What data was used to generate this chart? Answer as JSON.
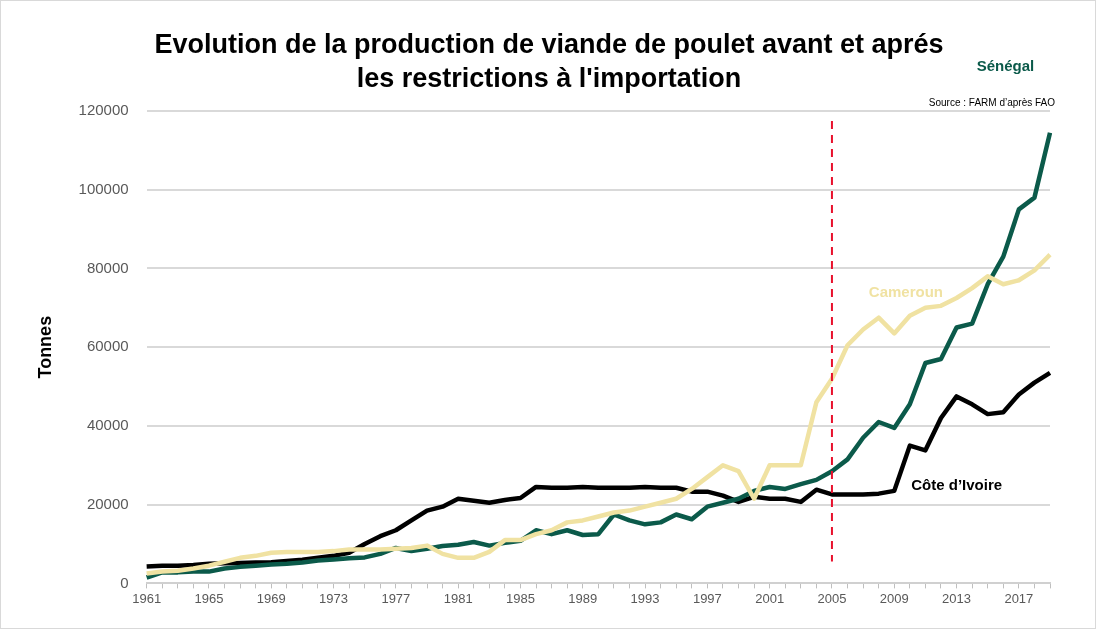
{
  "chart_data": {
    "type": "line",
    "title": "Evolution de la production de viande de poulet avant et aprés les restrictions à l'importation",
    "ylabel": "Tonnes",
    "annotations": [
      "Source : FARM d’après FAO"
    ],
    "categories": [
      "1961",
      null,
      null,
      null,
      "1965",
      null,
      null,
      null,
      "1969",
      null,
      null,
      null,
      "1973",
      null,
      null,
      null,
      "1977",
      null,
      null,
      null,
      "1981",
      null,
      null,
      null,
      "1985",
      null,
      null,
      null,
      "1989",
      null,
      null,
      null,
      "1993",
      null,
      null,
      null,
      "1997",
      null,
      null,
      null,
      "2001",
      null,
      null,
      null,
      "2005",
      null,
      null,
      null,
      "2009",
      null,
      null,
      null,
      "2013",
      null,
      null,
      null,
      "2017",
      null,
      null
    ],
    "series": [
      {
        "name": "Cameroun",
        "color": "#f0e2a2",
        "values": [
          2500,
          3000,
          3200,
          3800,
          4500,
          5500,
          6500,
          7000,
          7800,
          8000,
          8000,
          8000,
          8200,
          8600,
          8600,
          8600,
          8800,
          9000,
          9600,
          7500,
          6500,
          6500,
          8000,
          11000,
          11000,
          12500,
          13500,
          15500,
          16000,
          17000,
          18000,
          18500,
          19500,
          20500,
          21500,
          24000,
          27000,
          30000,
          28500,
          21500,
          30000,
          30000,
          30000,
          46000,
          52000,
          60500,
          64500,
          67500,
          63500,
          68000,
          70000,
          70500,
          72500,
          75000,
          78000,
          76000,
          77000,
          79500,
          83500
        ]
      },
      {
        "name": "Sénégal",
        "color": "#0b5a4a",
        "values": [
          1500,
          2800,
          2800,
          3000,
          3000,
          3800,
          4200,
          4500,
          4800,
          5000,
          5300,
          5800,
          6100,
          6400,
          6600,
          7500,
          9000,
          8200,
          8800,
          9500,
          9800,
          10500,
          9600,
          10300,
          10800,
          13500,
          12500,
          13500,
          12300,
          12500,
          17500,
          16000,
          15000,
          15500,
          17500,
          16300,
          19500,
          20500,
          21500,
          23500,
          24500,
          24000,
          25200,
          26300,
          28500,
          31500,
          37000,
          41000,
          39500,
          45500,
          56000,
          57000,
          65000,
          66000,
          76000,
          83000,
          95000,
          98000,
          114500
        ]
      },
      {
        "name": "Côte d’Ivoire",
        "color": "#000000",
        "values": [
          4300,
          4500,
          4500,
          4700,
          5000,
          5100,
          5200,
          5300,
          5400,
          5700,
          6000,
          6500,
          7000,
          7800,
          10000,
          12000,
          13500,
          16000,
          18500,
          19500,
          21500,
          21000,
          20500,
          21200,
          21700,
          24500,
          24300,
          24300,
          24500,
          24300,
          24300,
          24300,
          24500,
          24300,
          24300,
          23300,
          23300,
          22300,
          20700,
          22000,
          21500,
          21500,
          20700,
          23800,
          22600,
          22600,
          22600,
          22800,
          23500,
          35000,
          33800,
          42000,
          47500,
          45500,
          43000,
          43500,
          48000,
          51000,
          53500
        ]
      }
    ],
    "ylim": [
      0,
      120000
    ],
    "yticks": [
      0,
      20000,
      40000,
      60000,
      80000,
      100000,
      120000
    ],
    "grid": "y",
    "legend": false,
    "marker": "none",
    "line_style": "solid",
    "ref_lines": [
      {
        "axis": "x",
        "value": "2005",
        "color": "#e8112d",
        "line_style": "dashed"
      }
    ]
  }
}
